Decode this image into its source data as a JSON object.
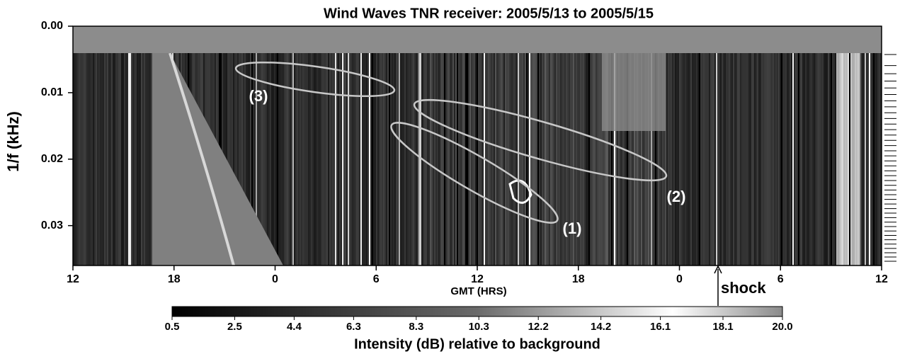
{
  "chart_data": {
    "type": "heatmap",
    "title": "Wind Waves TNR receiver: 2005/5/13 to 2005/5/15",
    "xlabel": "GMT (HRS)",
    "ylabel": "1/f (kHz)",
    "xlim": [
      0,
      48
    ],
    "xticks": [
      {
        "value": 0,
        "label": "12"
      },
      {
        "value": 6,
        "label": "18"
      },
      {
        "value": 12,
        "label": "0"
      },
      {
        "value": 18,
        "label": "6"
      },
      {
        "value": 24,
        "label": "12"
      },
      {
        "value": 30,
        "label": "18"
      },
      {
        "value": 36,
        "label": "0"
      },
      {
        "value": 42,
        "label": "6"
      },
      {
        "value": 48,
        "label": "12"
      }
    ],
    "ylim": [
      0,
      0.036
    ],
    "y_inverted": true,
    "yticks": [
      {
        "value": 0,
        "label": "0.00"
      },
      0.01,
      0.02,
      0.03
    ],
    "colorbar": {
      "label": "Intensity (dB) relative to background",
      "lim": [
        0.5,
        20
      ],
      "ticks": [
        0.5,
        2.5,
        4.4,
        6.3,
        8.3,
        10.3,
        12.2,
        14.2,
        16.1,
        18.1,
        {
          "value": 20,
          "label": "20.0"
        }
      ]
    },
    "annotations": [
      "(1)",
      "(2)",
      "(3)",
      "shock"
    ]
  }
}
